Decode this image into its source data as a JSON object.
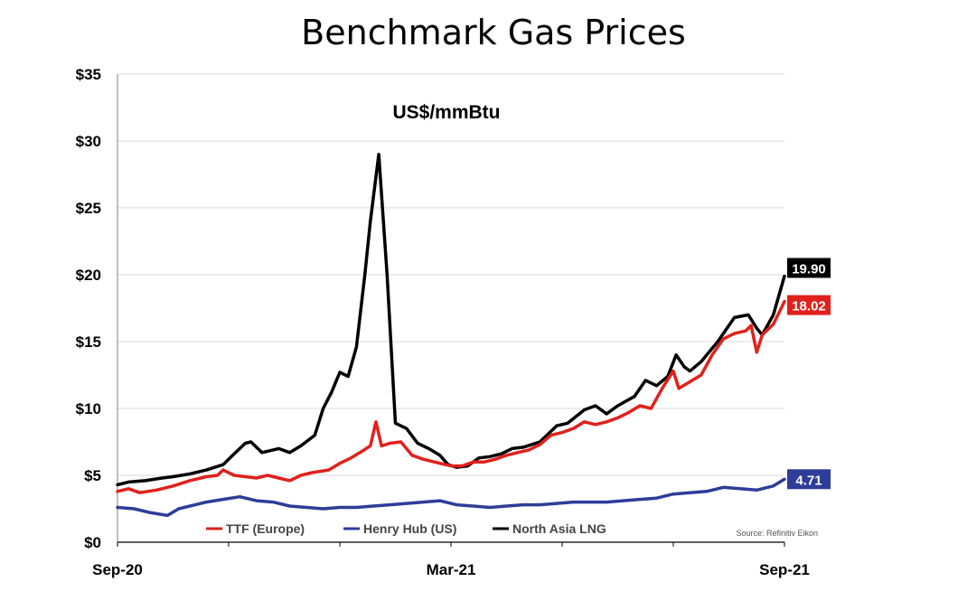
{
  "chart_data": {
    "type": "line",
    "title": "Benchmark Gas Prices",
    "subtitle": "US$/mmBtu",
    "source": "Source: Refinitiv Eikon",
    "ylim": [
      0,
      35
    ],
    "y_ticks": [
      "$0",
      "$5",
      "$10",
      "$15",
      "$20",
      "$25",
      "$30",
      "$35"
    ],
    "y_tick_values": [
      0,
      5,
      10,
      15,
      20,
      25,
      30,
      35
    ],
    "x_tick_labels": [
      "Sep-20",
      "Mar-21",
      "Sep-21"
    ],
    "x_tick_positions_month": [
      0,
      6,
      12
    ],
    "grid": "horizontal",
    "legend_position": "bottom",
    "series": [
      {
        "name": "North Asia LNG",
        "color": "#000000",
        "end_label": "19.90",
        "points": [
          [
            0,
            4.3
          ],
          [
            0.2,
            4.5
          ],
          [
            0.5,
            4.6
          ],
          [
            0.8,
            4.8
          ],
          [
            1.0,
            4.9
          ],
          [
            1.3,
            5.1
          ],
          [
            1.6,
            5.4
          ],
          [
            1.9,
            5.8
          ],
          [
            2.1,
            6.6
          ],
          [
            2.3,
            7.4
          ],
          [
            2.4,
            7.5
          ],
          [
            2.6,
            6.7
          ],
          [
            2.9,
            7.0
          ],
          [
            3.1,
            6.7
          ],
          [
            3.3,
            7.2
          ],
          [
            3.55,
            8.0
          ],
          [
            3.7,
            10.0
          ],
          [
            3.85,
            11.2
          ],
          [
            4.0,
            12.7
          ],
          [
            4.15,
            12.4
          ],
          [
            4.3,
            14.6
          ],
          [
            4.45,
            20.0
          ],
          [
            4.55,
            24.0
          ],
          [
            4.7,
            29.0
          ],
          [
            4.85,
            20.0
          ],
          [
            5.0,
            8.9
          ],
          [
            5.2,
            8.5
          ],
          [
            5.4,
            7.4
          ],
          [
            5.6,
            7.0
          ],
          [
            5.8,
            6.5
          ],
          [
            5.95,
            5.8
          ],
          [
            6.1,
            5.6
          ],
          [
            6.3,
            5.7
          ],
          [
            6.5,
            6.3
          ],
          [
            6.7,
            6.4
          ],
          [
            6.9,
            6.6
          ],
          [
            7.1,
            7.0
          ],
          [
            7.3,
            7.1
          ],
          [
            7.6,
            7.5
          ],
          [
            7.9,
            8.7
          ],
          [
            8.1,
            8.9
          ],
          [
            8.4,
            9.9
          ],
          [
            8.6,
            10.2
          ],
          [
            8.8,
            9.6
          ],
          [
            9.0,
            10.2
          ],
          [
            9.3,
            10.9
          ],
          [
            9.5,
            12.1
          ],
          [
            9.7,
            11.7
          ],
          [
            9.9,
            12.4
          ],
          [
            10.05,
            14.0
          ],
          [
            10.2,
            13.1
          ],
          [
            10.3,
            12.8
          ],
          [
            10.5,
            13.5
          ],
          [
            10.8,
            15.0
          ],
          [
            11.1,
            16.8
          ],
          [
            11.35,
            17.0
          ],
          [
            11.5,
            16.0
          ],
          [
            11.6,
            15.5
          ],
          [
            11.8,
            17.0
          ],
          [
            12.0,
            19.9
          ]
        ]
      },
      {
        "name": "TTF (Europe)",
        "color": "#e0211c",
        "end_label": "18.02",
        "points": [
          [
            0,
            3.8
          ],
          [
            0.2,
            4.0
          ],
          [
            0.4,
            3.7
          ],
          [
            0.7,
            3.9
          ],
          [
            1.0,
            4.2
          ],
          [
            1.3,
            4.6
          ],
          [
            1.6,
            4.9
          ],
          [
            1.8,
            5.0
          ],
          [
            1.9,
            5.4
          ],
          [
            2.1,
            5.0
          ],
          [
            2.3,
            4.9
          ],
          [
            2.5,
            4.8
          ],
          [
            2.7,
            5.0
          ],
          [
            2.9,
            4.8
          ],
          [
            3.1,
            4.6
          ],
          [
            3.3,
            5.0
          ],
          [
            3.5,
            5.2
          ],
          [
            3.8,
            5.4
          ],
          [
            4.0,
            5.9
          ],
          [
            4.2,
            6.3
          ],
          [
            4.4,
            6.8
          ],
          [
            4.55,
            7.2
          ],
          [
            4.65,
            9.0
          ],
          [
            4.75,
            7.2
          ],
          [
            4.9,
            7.4
          ],
          [
            5.1,
            7.5
          ],
          [
            5.3,
            6.5
          ],
          [
            5.5,
            6.2
          ],
          [
            5.8,
            5.9
          ],
          [
            6.0,
            5.7
          ],
          [
            6.2,
            5.7
          ],
          [
            6.4,
            6.0
          ],
          [
            6.6,
            6.0
          ],
          [
            6.8,
            6.2
          ],
          [
            7.0,
            6.5
          ],
          [
            7.2,
            6.7
          ],
          [
            7.4,
            6.9
          ],
          [
            7.6,
            7.3
          ],
          [
            7.8,
            8.0
          ],
          [
            8.0,
            8.2
          ],
          [
            8.2,
            8.5
          ],
          [
            8.4,
            9.0
          ],
          [
            8.6,
            8.8
          ],
          [
            8.8,
            9.0
          ],
          [
            9.0,
            9.3
          ],
          [
            9.2,
            9.7
          ],
          [
            9.4,
            10.2
          ],
          [
            9.6,
            10.0
          ],
          [
            9.8,
            11.5
          ],
          [
            10.0,
            12.8
          ],
          [
            10.1,
            11.5
          ],
          [
            10.3,
            12.0
          ],
          [
            10.5,
            12.5
          ],
          [
            10.7,
            14.0
          ],
          [
            10.9,
            15.2
          ],
          [
            11.1,
            15.6
          ],
          [
            11.3,
            15.8
          ],
          [
            11.4,
            16.2
          ],
          [
            11.5,
            14.2
          ],
          [
            11.6,
            15.5
          ],
          [
            11.8,
            16.3
          ],
          [
            12.0,
            18.0
          ]
        ]
      },
      {
        "name": "Henry Hub (US)",
        "color": "#2e3d98",
        "end_label": "4.71",
        "points": [
          [
            0,
            2.6
          ],
          [
            0.3,
            2.5
          ],
          [
            0.6,
            2.2
          ],
          [
            0.9,
            2.0
          ],
          [
            1.1,
            2.5
          ],
          [
            1.4,
            2.8
          ],
          [
            1.6,
            3.0
          ],
          [
            1.9,
            3.2
          ],
          [
            2.2,
            3.4
          ],
          [
            2.5,
            3.1
          ],
          [
            2.8,
            3.0
          ],
          [
            3.1,
            2.7
          ],
          [
            3.4,
            2.6
          ],
          [
            3.7,
            2.5
          ],
          [
            4.0,
            2.6
          ],
          [
            4.3,
            2.6
          ],
          [
            4.6,
            2.7
          ],
          [
            4.9,
            2.8
          ],
          [
            5.2,
            2.9
          ],
          [
            5.5,
            3.0
          ],
          [
            5.8,
            3.1
          ],
          [
            6.1,
            2.8
          ],
          [
            6.4,
            2.7
          ],
          [
            6.7,
            2.6
          ],
          [
            7.0,
            2.7
          ],
          [
            7.3,
            2.8
          ],
          [
            7.6,
            2.8
          ],
          [
            7.9,
            2.9
          ],
          [
            8.2,
            3.0
          ],
          [
            8.5,
            3.0
          ],
          [
            8.8,
            3.0
          ],
          [
            9.1,
            3.1
          ],
          [
            9.4,
            3.2
          ],
          [
            9.7,
            3.3
          ],
          [
            10.0,
            3.6
          ],
          [
            10.3,
            3.7
          ],
          [
            10.6,
            3.8
          ],
          [
            10.9,
            4.1
          ],
          [
            11.2,
            4.0
          ],
          [
            11.5,
            3.9
          ],
          [
            11.8,
            4.2
          ],
          [
            12.0,
            4.71
          ]
        ]
      }
    ]
  }
}
